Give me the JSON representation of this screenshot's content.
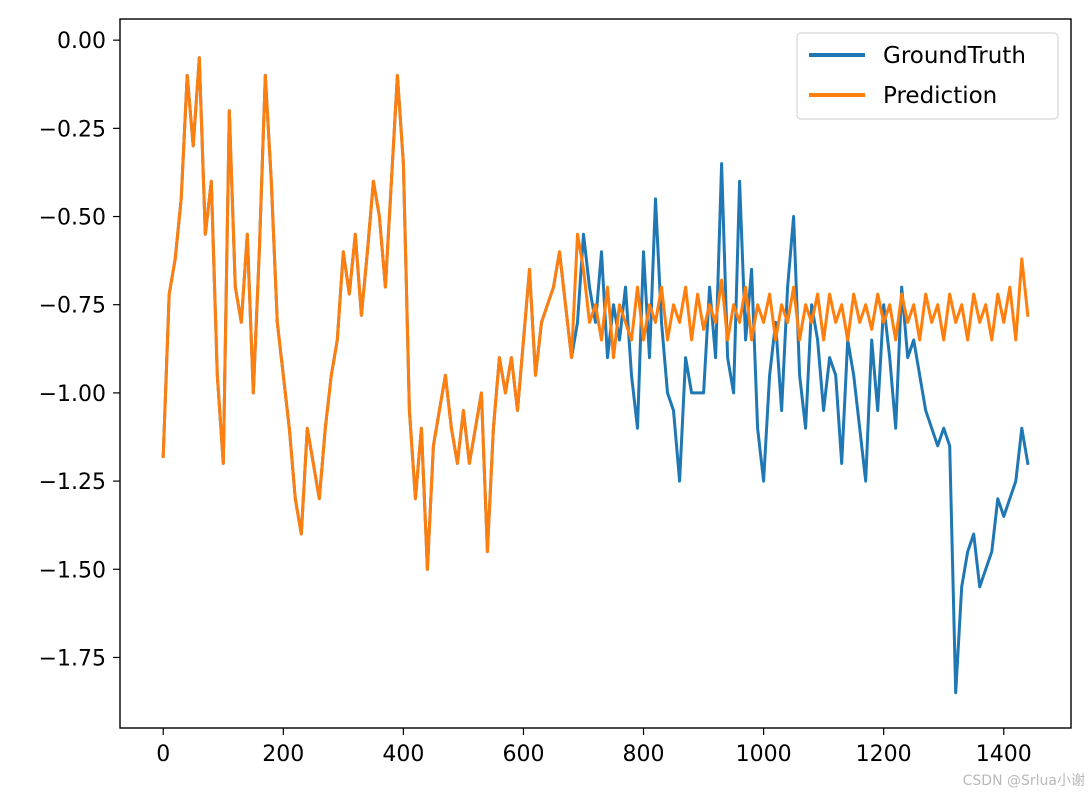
{
  "chart_data": {
    "type": "line",
    "title": "",
    "xlabel": "",
    "ylabel": "",
    "xlim": [
      -72,
      1512
    ],
    "ylim": [
      -1.95,
      0.06
    ],
    "x_ticks": [
      0,
      200,
      400,
      600,
      800,
      1000,
      1200,
      1400
    ],
    "x_tick_labels": [
      "0",
      "200",
      "400",
      "600",
      "800",
      "1000",
      "1200",
      "1400"
    ],
    "y_ticks": [
      0.0,
      -0.25,
      -0.5,
      -0.75,
      -1.0,
      -1.25,
      -1.5,
      -1.75
    ],
    "y_tick_labels": [
      "0.00",
      "−0.25",
      "−0.50",
      "−0.75",
      "−1.00",
      "−1.25",
      "−1.50",
      "−1.75"
    ],
    "grid": false,
    "legend": {
      "position": "top-right"
    },
    "series": [
      {
        "name": "GroundTruth",
        "color": "#1f77b4",
        "x": [
          0,
          10,
          20,
          30,
          40,
          50,
          60,
          70,
          80,
          90,
          100,
          110,
          120,
          130,
          140,
          150,
          160,
          170,
          180,
          190,
          200,
          210,
          220,
          230,
          240,
          250,
          260,
          270,
          280,
          290,
          300,
          310,
          320,
          330,
          340,
          350,
          360,
          370,
          380,
          390,
          400,
          410,
          420,
          430,
          440,
          450,
          460,
          470,
          480,
          490,
          500,
          510,
          520,
          530,
          540,
          550,
          560,
          570,
          580,
          590,
          600,
          610,
          620,
          630,
          640,
          650,
          660,
          670,
          680,
          690,
          700,
          710,
          720,
          730,
          740,
          750,
          760,
          770,
          780,
          790,
          800,
          810,
          820,
          830,
          840,
          850,
          860,
          870,
          880,
          890,
          900,
          910,
          920,
          930,
          940,
          950,
          960,
          970,
          980,
          990,
          1000,
          1010,
          1020,
          1030,
          1040,
          1050,
          1060,
          1070,
          1080,
          1090,
          1100,
          1110,
          1120,
          1130,
          1140,
          1150,
          1160,
          1170,
          1180,
          1190,
          1200,
          1210,
          1220,
          1230,
          1240,
          1250,
          1260,
          1270,
          1280,
          1290,
          1300,
          1310,
          1320,
          1330,
          1340,
          1350,
          1360,
          1370,
          1380,
          1390,
          1400,
          1410,
          1420,
          1430,
          1440
        ],
        "values": [
          -1.18,
          -0.72,
          -0.62,
          -0.45,
          -0.1,
          -0.3,
          -0.05,
          -0.55,
          -0.4,
          -0.95,
          -1.2,
          -0.2,
          -0.7,
          -0.8,
          -0.55,
          -1.0,
          -0.6,
          -0.1,
          -0.4,
          -0.8,
          -0.95,
          -1.1,
          -1.3,
          -1.4,
          -1.1,
          -1.2,
          -1.3,
          -1.1,
          -0.95,
          -0.85,
          -0.6,
          -0.72,
          -0.55,
          -0.78,
          -0.6,
          -0.4,
          -0.5,
          -0.7,
          -0.4,
          -0.1,
          -0.35,
          -1.05,
          -1.3,
          -1.1,
          -1.5,
          -1.15,
          -1.05,
          -0.95,
          -1.1,
          -1.2,
          -1.05,
          -1.2,
          -1.1,
          -1.0,
          -1.45,
          -1.1,
          -0.9,
          -1.0,
          -0.9,
          -1.05,
          -0.85,
          -0.65,
          -0.95,
          -0.8,
          -0.75,
          -0.7,
          -0.6,
          -0.75,
          -0.9,
          -0.8,
          -0.55,
          -0.7,
          -0.8,
          -0.6,
          -0.9,
          -0.75,
          -0.85,
          -0.7,
          -0.95,
          -1.1,
          -0.6,
          -0.9,
          -0.45,
          -0.8,
          -1.0,
          -1.05,
          -1.25,
          -0.9,
          -1.0,
          -1.0,
          -1.0,
          -0.7,
          -0.9,
          -0.35,
          -0.9,
          -1.0,
          -0.4,
          -0.85,
          -0.65,
          -1.1,
          -1.25,
          -0.95,
          -0.8,
          -1.05,
          -0.7,
          -0.5,
          -0.95,
          -1.1,
          -0.75,
          -0.85,
          -1.05,
          -0.9,
          -0.95,
          -1.2,
          -0.85,
          -0.95,
          -1.1,
          -1.25,
          -0.85,
          -1.05,
          -0.75,
          -0.9,
          -1.1,
          -0.7,
          -0.9,
          -0.85,
          -0.95,
          -1.05,
          -1.1,
          -1.15,
          -1.1,
          -1.15,
          -1.85,
          -1.55,
          -1.45,
          -1.4,
          -1.55,
          -1.5,
          -1.45,
          -1.3,
          -1.35,
          -1.3,
          -1.25,
          -1.1,
          -1.2
        ]
      },
      {
        "name": "Prediction",
        "color": "#ff7f0e",
        "x": [
          0,
          10,
          20,
          30,
          40,
          50,
          60,
          70,
          80,
          90,
          100,
          110,
          120,
          130,
          140,
          150,
          160,
          170,
          180,
          190,
          200,
          210,
          220,
          230,
          240,
          250,
          260,
          270,
          280,
          290,
          300,
          310,
          320,
          330,
          340,
          350,
          360,
          370,
          380,
          390,
          400,
          410,
          420,
          430,
          440,
          450,
          460,
          470,
          480,
          490,
          500,
          510,
          520,
          530,
          540,
          550,
          560,
          570,
          580,
          590,
          600,
          610,
          620,
          630,
          640,
          650,
          660,
          670,
          680,
          690,
          700,
          710,
          720,
          730,
          740,
          750,
          760,
          770,
          780,
          790,
          800,
          810,
          820,
          830,
          840,
          850,
          860,
          870,
          880,
          890,
          900,
          910,
          920,
          930,
          940,
          950,
          960,
          970,
          980,
          990,
          1000,
          1010,
          1020,
          1030,
          1040,
          1050,
          1060,
          1070,
          1080,
          1090,
          1100,
          1110,
          1120,
          1130,
          1140,
          1150,
          1160,
          1170,
          1180,
          1190,
          1200,
          1210,
          1220,
          1230,
          1240,
          1250,
          1260,
          1270,
          1280,
          1290,
          1300,
          1310,
          1320,
          1330,
          1340,
          1350,
          1360,
          1370,
          1380,
          1390,
          1400,
          1410,
          1420,
          1430,
          1440
        ],
        "values": [
          -1.18,
          -0.72,
          -0.62,
          -0.45,
          -0.1,
          -0.3,
          -0.05,
          -0.55,
          -0.4,
          -0.95,
          -1.2,
          -0.2,
          -0.7,
          -0.8,
          -0.55,
          -1.0,
          -0.6,
          -0.1,
          -0.4,
          -0.8,
          -0.95,
          -1.1,
          -1.3,
          -1.4,
          -1.1,
          -1.2,
          -1.3,
          -1.1,
          -0.95,
          -0.85,
          -0.6,
          -0.72,
          -0.55,
          -0.78,
          -0.6,
          -0.4,
          -0.5,
          -0.7,
          -0.4,
          -0.1,
          -0.35,
          -1.05,
          -1.3,
          -1.1,
          -1.5,
          -1.15,
          -1.05,
          -0.95,
          -1.1,
          -1.2,
          -1.05,
          -1.2,
          -1.1,
          -1.0,
          -1.45,
          -1.1,
          -0.9,
          -1.0,
          -0.9,
          -1.05,
          -0.85,
          -0.65,
          -0.95,
          -0.8,
          -0.75,
          -0.7,
          -0.6,
          -0.75,
          -0.9,
          -0.55,
          -0.65,
          -0.8,
          -0.75,
          -0.85,
          -0.7,
          -0.9,
          -0.75,
          -0.8,
          -0.85,
          -0.7,
          -0.85,
          -0.75,
          -0.8,
          -0.7,
          -0.85,
          -0.75,
          -0.8,
          -0.7,
          -0.85,
          -0.72,
          -0.82,
          -0.75,
          -0.8,
          -0.68,
          -0.85,
          -0.75,
          -0.8,
          -0.7,
          -0.85,
          -0.75,
          -0.8,
          -0.72,
          -0.85,
          -0.75,
          -0.8,
          -0.7,
          -0.85,
          -0.75,
          -0.8,
          -0.72,
          -0.85,
          -0.72,
          -0.8,
          -0.75,
          -0.85,
          -0.72,
          -0.8,
          -0.75,
          -0.82,
          -0.72,
          -0.8,
          -0.75,
          -0.85,
          -0.72,
          -0.8,
          -0.75,
          -0.85,
          -0.72,
          -0.8,
          -0.75,
          -0.85,
          -0.72,
          -0.8,
          -0.75,
          -0.85,
          -0.72,
          -0.8,
          -0.75,
          -0.85,
          -0.72,
          -0.8,
          -0.7,
          -0.85,
          -0.62,
          -0.78
        ]
      }
    ]
  },
  "watermark": "CSDN @Srlua小谢"
}
